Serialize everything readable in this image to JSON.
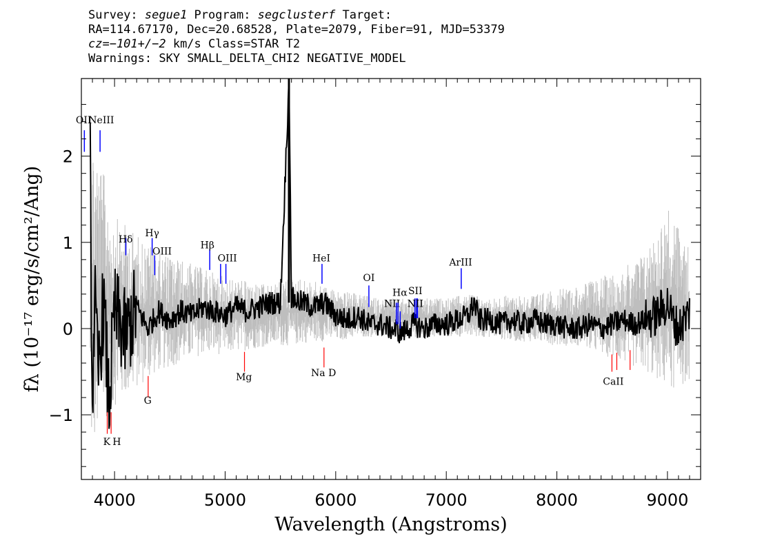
{
  "header": {
    "line1": {
      "survey_label": "Survey: ",
      "survey": "segue1",
      "program_label": " Program: ",
      "program": "segclusterf",
      "target_label": " Target:"
    },
    "line2": "RA=114.67170, Dec=20.68528, Plate=2079, Fiber=91, MJD=53379",
    "line3": {
      "cz": "cz=−101+/−2",
      "rest": " km/s Class=STAR T2"
    },
    "line4": "Warnings: SKY SMALL_DELTA_CHI2 NEGATIVE_MODEL"
  },
  "chart_data": {
    "type": "line",
    "xlabel": "Wavelength (Angstroms)",
    "ylabel": "fλ (10⁻¹⁷ erg/s/cm²/Ang)",
    "xlim": [
      3700,
      9300
    ],
    "ylim": [
      -1.75,
      2.9
    ],
    "x_ticks": [
      4000,
      5000,
      6000,
      7000,
      8000,
      9000
    ],
    "y_ticks": [
      -1,
      0,
      1,
      2
    ],
    "grid": false,
    "colors": {
      "flux": "#000000",
      "noise": "#bebebe",
      "emission": "#0000ff",
      "absorption": "#ff0000"
    },
    "series": [
      {
        "style": "noise-envelope-gray",
        "x": [
          3780,
          3820,
          3900,
          4000,
          4200,
          4400,
          4600,
          4800,
          5000,
          5200,
          5400,
          5600,
          5800,
          6000,
          6200,
          6400,
          6600,
          6800,
          7000,
          7200,
          7400,
          7600,
          7800,
          8000,
          8200,
          8400,
          8600,
          8800,
          9000,
          9100,
          9200
        ],
        "lower": [
          -1.5,
          -1.4,
          -1.1,
          -0.9,
          -0.7,
          -0.5,
          -0.4,
          -0.3,
          -0.3,
          -0.25,
          -0.2,
          -0.2,
          -0.15,
          -0.15,
          -0.1,
          -0.1,
          -0.1,
          -0.1,
          -0.1,
          -0.1,
          -0.1,
          -0.15,
          -0.15,
          -0.2,
          -0.2,
          -0.3,
          -0.4,
          -0.5,
          -0.7,
          -0.7,
          -0.6
        ],
        "upper": [
          2.4,
          2.2,
          1.8,
          1.3,
          1.1,
          0.9,
          0.8,
          0.7,
          0.6,
          0.55,
          0.5,
          0.6,
          0.55,
          0.45,
          0.4,
          0.35,
          0.35,
          0.35,
          0.35,
          0.4,
          0.35,
          0.4,
          0.4,
          0.45,
          0.5,
          0.6,
          0.7,
          0.9,
          1.4,
          1.2,
          0.9
        ]
      },
      {
        "style": "flux-black",
        "x": [
          3780,
          3800,
          3820,
          3850,
          3900,
          3950,
          4000,
          4100,
          4200,
          4300,
          4400,
          4500,
          4600,
          4700,
          4800,
          4900,
          5000,
          5100,
          5200,
          5300,
          5400,
          5500,
          5577,
          5600,
          5700,
          5800,
          5900,
          6000,
          6100,
          6200,
          6300,
          6400,
          6500,
          6600,
          6700,
          6800,
          6900,
          7000,
          7100,
          7200,
          7250,
          7300,
          7400,
          7500,
          7600,
          7700,
          7800,
          7900,
          8000,
          8100,
          8200,
          8300,
          8400,
          8500,
          8600,
          8700,
          8800,
          8900,
          9000,
          9050,
          9100,
          9150,
          9200
        ],
        "y": [
          1.9,
          -0.9,
          0.4,
          -0.6,
          0.3,
          -0.9,
          0.2,
          -0.1,
          0.25,
          0.0,
          0.2,
          0.1,
          0.2,
          0.15,
          0.25,
          0.2,
          0.15,
          0.25,
          0.2,
          0.25,
          0.3,
          0.3,
          2.9,
          0.35,
          0.3,
          0.25,
          0.3,
          0.15,
          0.1,
          0.15,
          0.05,
          0.05,
          0.0,
          -0.05,
          0.05,
          0.0,
          0.05,
          0.05,
          0.1,
          0.15,
          0.3,
          0.1,
          0.1,
          0.05,
          0.1,
          0.05,
          0.1,
          0.05,
          0.05,
          0.0,
          0.0,
          0.05,
          0.0,
          0.05,
          0.1,
          0.05,
          0.1,
          0.15,
          0.3,
          0.1,
          0.0,
          0.1,
          0.2
        ]
      }
    ],
    "line_markers": {
      "emission": [
        {
          "label": "OII",
          "wave": 3727
        },
        {
          "label": "NeIII",
          "wave": 3869
        },
        {
          "label": "Hδ",
          "wave": 4102
        },
        {
          "label": "Hγ",
          "wave": 4340
        },
        {
          "label": "OIII",
          "wave": 4363
        },
        {
          "label": "Hβ",
          "wave": 4861
        },
        {
          "label": "OIII",
          "wave": 4959
        },
        {
          "label": "",
          "wave": 5007
        },
        {
          "label": "HeI",
          "wave": 5876
        },
        {
          "label": "OI",
          "wave": 6300
        },
        {
          "label": "NII",
          "wave": 6548
        },
        {
          "label": "Hα",
          "wave": 6563
        },
        {
          "label": "",
          "wave": 6583
        },
        {
          "label": "SII",
          "wave": 6716
        },
        {
          "label": "",
          "wave": 6731
        },
        {
          "label": "NII",
          "wave": 6740
        },
        {
          "label": "ArIII",
          "wave": 7135
        }
      ],
      "absorption": [
        {
          "label": "K",
          "wave": 3934
        },
        {
          "label": "H",
          "wave": 3969
        },
        {
          "label": "G",
          "wave": 4304
        },
        {
          "label": "Mg",
          "wave": 5175
        },
        {
          "label": "Na D",
          "wave": 5894
        },
        {
          "label": "CaII",
          "wave": 8498
        },
        {
          "label": "",
          "wave": 8542
        },
        {
          "label": "",
          "wave": 8662
        }
      ]
    }
  }
}
